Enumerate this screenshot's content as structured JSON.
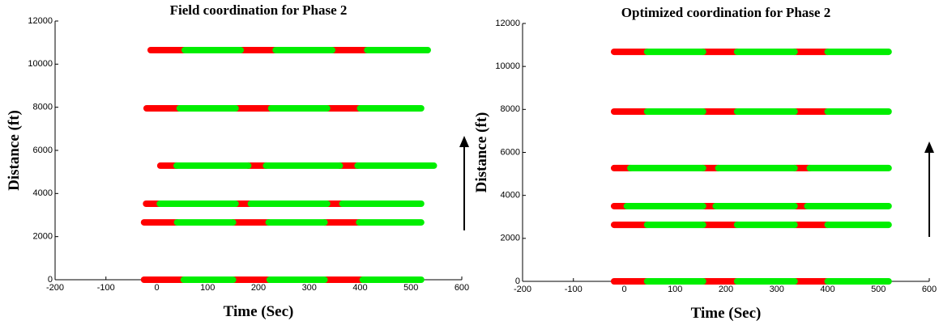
{
  "chart_data": [
    {
      "type": "signal",
      "title": "Field coordination for Phase  2",
      "xlabel": "Time (Sec)",
      "ylabel": "Distance (ft)",
      "xlim": [
        -200,
        600
      ],
      "ylim": [
        0,
        12000
      ],
      "xticks": [
        -200,
        -100,
        0,
        100,
        200,
        300,
        400,
        500,
        600
      ],
      "yticks": [
        0,
        2000,
        4000,
        6000,
        8000,
        10000,
        12000
      ],
      "red_color": "#ff0000",
      "green_color": "#00ee00",
      "rows": [
        {
          "y": 10650,
          "red": [
            [
              -12,
              55
            ],
            [
              165,
              234
            ],
            [
              345,
              414
            ]
          ],
          "green": [
            [
              55,
              165
            ],
            [
              234,
              345
            ],
            [
              414,
              533
            ]
          ]
        },
        {
          "y": 7950,
          "red": [
            [
              -20,
              45
            ],
            [
              155,
              225
            ],
            [
              335,
              400
            ]
          ],
          "green": [
            [
              45,
              155
            ],
            [
              225,
              335
            ],
            [
              400,
              520
            ]
          ]
        },
        {
          "y": 5290,
          "red": [
            [
              7,
              39
            ],
            [
              180,
              215
            ],
            [
              360,
              395
            ]
          ],
          "green": [
            [
              39,
              180
            ],
            [
              215,
              360
            ],
            [
              395,
              545
            ]
          ]
        },
        {
          "y": 3525,
          "red": [
            [
              -21,
              6
            ],
            [
              155,
              185
            ],
            [
              335,
              365
            ]
          ],
          "green": [
            [
              6,
              155
            ],
            [
              185,
              335
            ],
            [
              365,
              520
            ]
          ]
        },
        {
          "y": 2660,
          "red": [
            [
              -25,
              40
            ],
            [
              150,
              220
            ],
            [
              330,
              398
            ]
          ],
          "green": [
            [
              40,
              150
            ],
            [
              220,
              330
            ],
            [
              398,
              520
            ]
          ]
        },
        {
          "y": 0,
          "red": [
            [
              -25,
              53
            ],
            [
              150,
              222
            ],
            [
              330,
              405
            ]
          ],
          "green": [
            [
              53,
              150
            ],
            [
              222,
              330
            ],
            [
              405,
              520
            ]
          ]
        }
      ]
    },
    {
      "type": "signal",
      "title": "Optimized coordination for Phase 2",
      "xlabel": "Time (Sec)",
      "ylabel": "Distance (ft)",
      "xlim": [
        -200,
        600
      ],
      "ylim": [
        0,
        12000
      ],
      "xticks": [
        -200,
        -100,
        0,
        100,
        200,
        300,
        400,
        500,
        600
      ],
      "yticks": [
        0,
        2000,
        4000,
        6000,
        8000,
        10000,
        12000
      ],
      "red_color": "#ff0000",
      "green_color": "#00ee00",
      "rows": [
        {
          "y": 10680,
          "red": [
            [
              -20,
              45
            ],
            [
              155,
              222
            ],
            [
              335,
              400
            ]
          ],
          "green": [
            [
              45,
              155
            ],
            [
              222,
              335
            ],
            [
              400,
              520
            ]
          ]
        },
        {
          "y": 7900,
          "red": [
            [
              -20,
              45
            ],
            [
              155,
              222
            ],
            [
              335,
              400
            ]
          ],
          "green": [
            [
              45,
              155
            ],
            [
              222,
              335
            ],
            [
              400,
              520
            ]
          ]
        },
        {
          "y": 5270,
          "red": [
            [
              -20,
              12
            ],
            [
              155,
              185
            ],
            [
              335,
              365
            ]
          ],
          "green": [
            [
              12,
              155
            ],
            [
              185,
              335
            ],
            [
              365,
              520
            ]
          ]
        },
        {
          "y": 3500,
          "red": [
            [
              -20,
              5
            ],
            [
              155,
              180
            ],
            [
              335,
              360
            ]
          ],
          "green": [
            [
              5,
              155
            ],
            [
              180,
              335
            ],
            [
              360,
              520
            ]
          ]
        },
        {
          "y": 2630,
          "red": [
            [
              -20,
              45
            ],
            [
              155,
              222
            ],
            [
              335,
              400
            ]
          ],
          "green": [
            [
              45,
              155
            ],
            [
              222,
              335
            ],
            [
              400,
              520
            ]
          ]
        },
        {
          "y": 0,
          "red": [
            [
              -20,
              45
            ],
            [
              155,
              222
            ],
            [
              335,
              400
            ]
          ],
          "green": [
            [
              45,
              155
            ],
            [
              222,
              335
            ],
            [
              400,
              520
            ]
          ]
        }
      ]
    }
  ]
}
